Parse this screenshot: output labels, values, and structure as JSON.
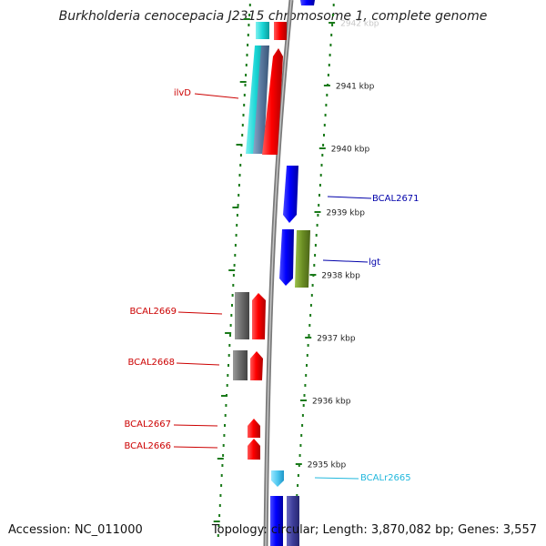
{
  "title": "Burkholderia cenocepacia J2315 chromosome 1, complete genome",
  "footer": {
    "accession": "Accession: NC_011000",
    "summary": "Topology: circular; Length: 3,870,082 bp; Genes: 3,557"
  },
  "ruler": {
    "color": "#1a7a1a",
    "ticks": [
      {
        "label": "2942 kbp",
        "faded": true
      },
      {
        "label": "2941 kbp"
      },
      {
        "label": "2940 kbp"
      },
      {
        "label": "2939 kbp"
      },
      {
        "label": "2938 kbp"
      },
      {
        "label": "2937 kbp"
      },
      {
        "label": "2936 kbp"
      },
      {
        "label": "2935 kbp"
      }
    ]
  },
  "genes": [
    {
      "name": "ilvD",
      "color": "#cc0000"
    },
    {
      "name": "BCAL2671",
      "color": "#0000aa"
    },
    {
      "name": "lgt",
      "color": "#0000aa"
    },
    {
      "name": "BCAL2669",
      "color": "#cc0000"
    },
    {
      "name": "BCAL2668",
      "color": "#cc0000"
    },
    {
      "name": "BCAL2667",
      "color": "#cc0000"
    },
    {
      "name": "BCAL2666",
      "color": "#cc0000"
    },
    {
      "name": "BCALr2665",
      "color": "#22b8dd"
    }
  ],
  "colors": {
    "backbone": "#8c8c8c",
    "forward_gene": "#ff0000",
    "reverse_gene": "#0000ff",
    "cds_feature": "#6a6a6a",
    "cyan_feature": "#19d6d6",
    "olive_feature": "#6b8e23",
    "rna_gene": "#4fc8f0",
    "navy_feature": "#3d3d99"
  }
}
